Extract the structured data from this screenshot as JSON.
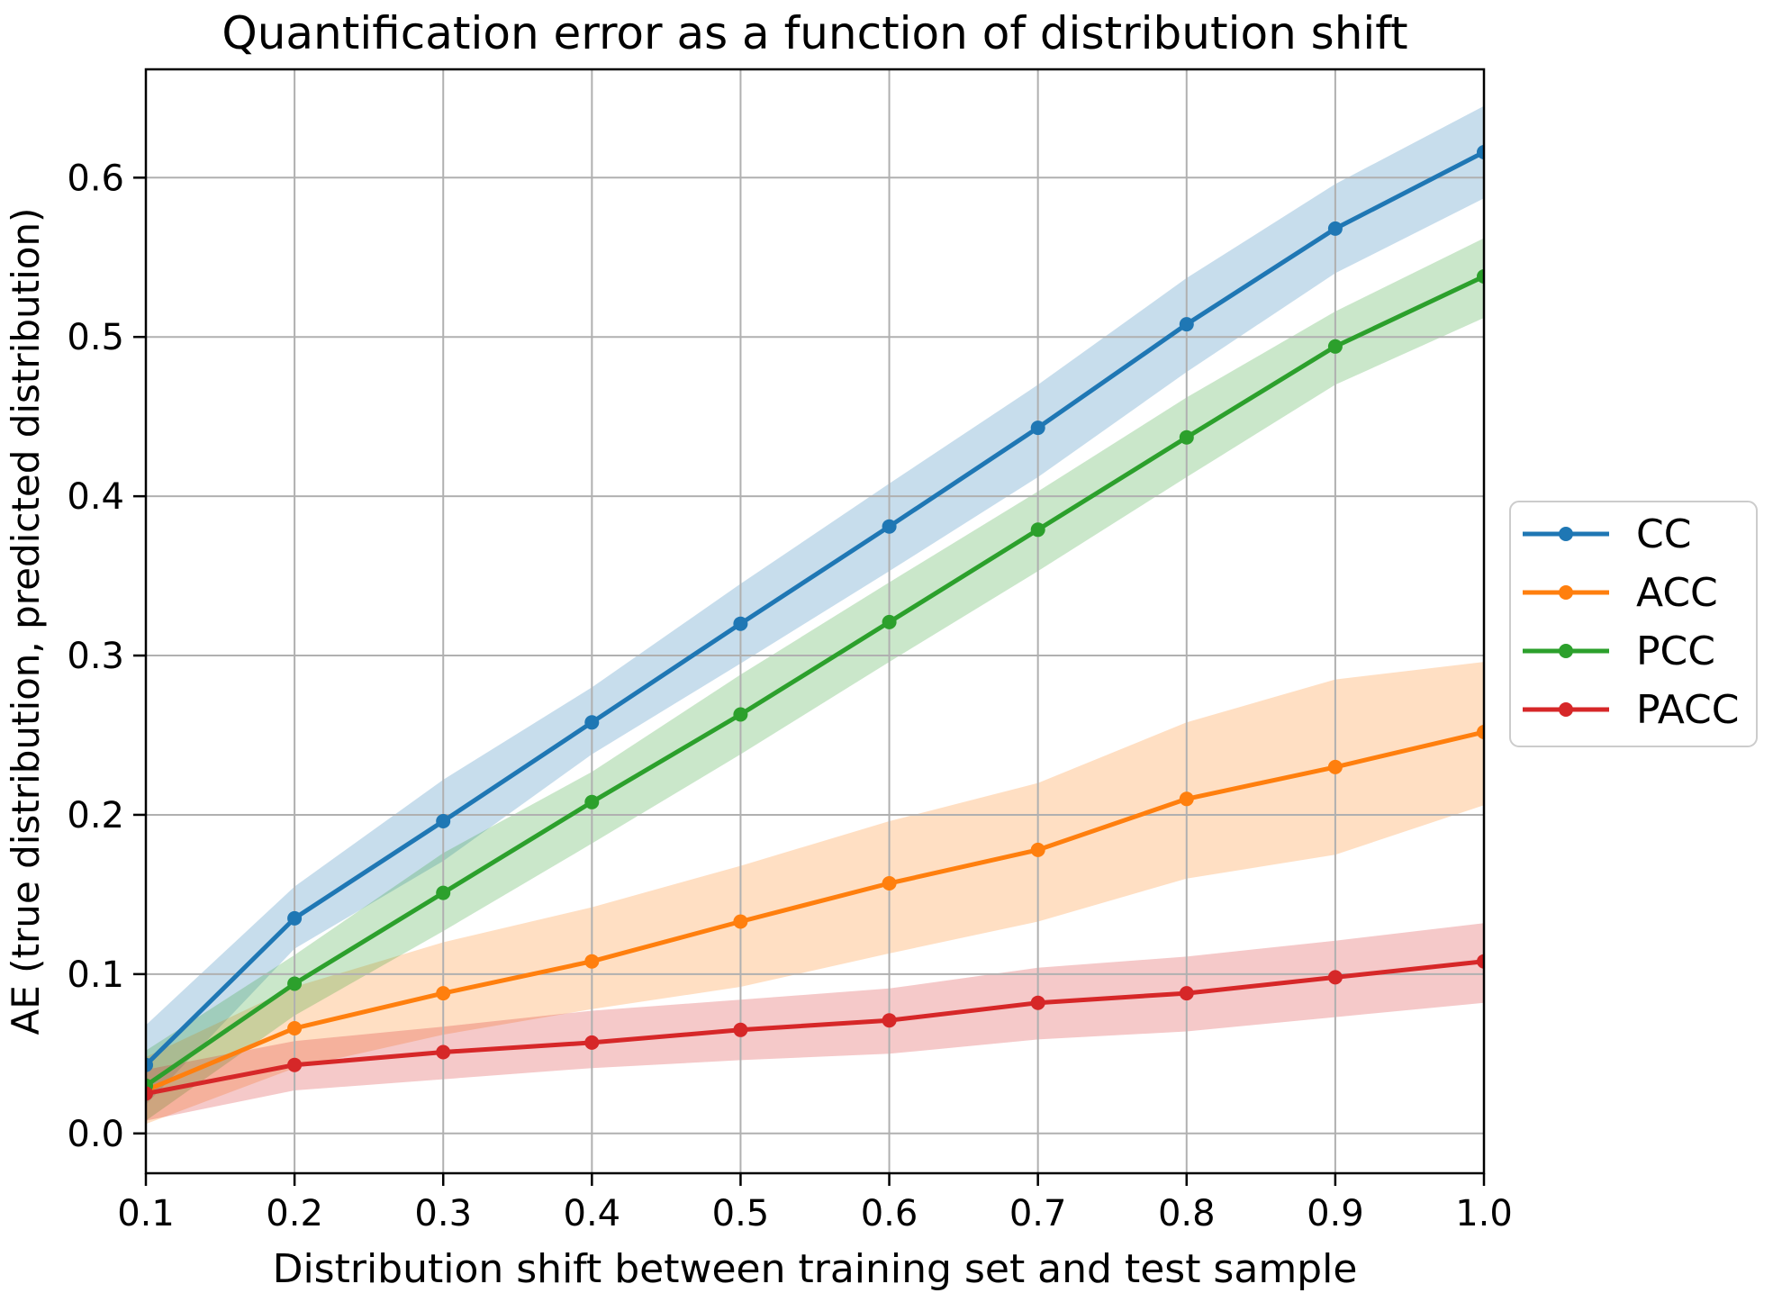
{
  "title": "Quantification error as a function of distribution shift",
  "chart_data": {
    "type": "line",
    "title": "Quantification error as a function of distribution shift",
    "xlabel": "Distribution shift between training set and test sample",
    "ylabel": "AE (true distribution, predicted distribution)",
    "x": [
      0.1,
      0.2,
      0.3,
      0.4,
      0.5,
      0.6,
      0.7,
      0.8,
      0.9,
      1.0
    ],
    "xlim": [
      0.1,
      1.0
    ],
    "ylim": [
      -0.025,
      0.668
    ],
    "x_tick_labels": [
      "0.1",
      "0.2",
      "0.3",
      "0.4",
      "0.5",
      "0.6",
      "0.7",
      "0.8",
      "0.9",
      "1.0"
    ],
    "y_ticks": [
      0.0,
      0.1,
      0.2,
      0.3,
      0.4,
      0.5,
      0.6
    ],
    "y_tick_labels": [
      "0.0",
      "0.1",
      "0.2",
      "0.3",
      "0.4",
      "0.5",
      "0.6"
    ],
    "grid": true,
    "grid_color": "#b0b0b0",
    "spine_color": "#000000",
    "band_opacity": 0.25,
    "legend_position": "outside-right",
    "legend_border_color": "#cccccc",
    "series": [
      {
        "name": "CC",
        "color": "#1f77b4",
        "values": [
          0.043,
          0.135,
          0.196,
          0.258,
          0.32,
          0.381,
          0.443,
          0.508,
          0.568,
          0.616
        ],
        "band_lower": [
          0.018,
          0.116,
          0.171,
          0.238,
          0.295,
          0.353,
          0.412,
          0.478,
          0.54,
          0.587
        ],
        "band_upper": [
          0.068,
          0.155,
          0.222,
          0.28,
          0.345,
          0.408,
          0.47,
          0.537,
          0.596,
          0.645
        ]
      },
      {
        "name": "ACC",
        "color": "#ff7f0e",
        "values": [
          0.027,
          0.066,
          0.088,
          0.108,
          0.133,
          0.157,
          0.178,
          0.21,
          0.23,
          0.252
        ],
        "band_lower": [
          0.006,
          0.041,
          0.062,
          0.078,
          0.092,
          0.113,
          0.133,
          0.16,
          0.175,
          0.206
        ],
        "band_upper": [
          0.048,
          0.092,
          0.12,
          0.142,
          0.168,
          0.196,
          0.22,
          0.258,
          0.285,
          0.296
        ]
      },
      {
        "name": "PCC",
        "color": "#2ca02c",
        "values": [
          0.03,
          0.094,
          0.151,
          0.208,
          0.263,
          0.321,
          0.379,
          0.437,
          0.494,
          0.538
        ],
        "band_lower": [
          0.008,
          0.074,
          0.127,
          0.182,
          0.238,
          0.296,
          0.353,
          0.412,
          0.47,
          0.512
        ],
        "band_upper": [
          0.052,
          0.112,
          0.176,
          0.227,
          0.288,
          0.346,
          0.403,
          0.462,
          0.516,
          0.562
        ]
      },
      {
        "name": "PACC",
        "color": "#d62728",
        "values": [
          0.025,
          0.043,
          0.051,
          0.057,
          0.065,
          0.071,
          0.082,
          0.088,
          0.098,
          0.108
        ],
        "band_lower": [
          0.008,
          0.027,
          0.034,
          0.041,
          0.046,
          0.05,
          0.059,
          0.064,
          0.073,
          0.082
        ],
        "band_upper": [
          0.04,
          0.058,
          0.067,
          0.077,
          0.084,
          0.091,
          0.104,
          0.111,
          0.121,
          0.132
        ]
      }
    ]
  }
}
